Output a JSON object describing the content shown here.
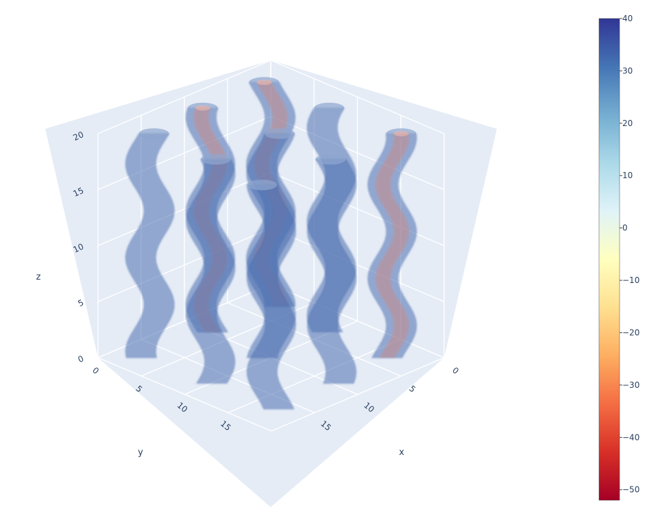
{
  "chart_data": {
    "type": "isosurface-3d",
    "title": "",
    "axes": {
      "x": {
        "title": "x",
        "range": [
          0,
          20
        ],
        "ticks": [
          "0",
          "5",
          "10",
          "15"
        ]
      },
      "y": {
        "title": "y",
        "range": [
          0,
          20
        ],
        "ticks": [
          "0",
          "5",
          "10",
          "15"
        ]
      },
      "z": {
        "title": "z",
        "range": [
          0,
          20
        ],
        "ticks": [
          "0",
          "5",
          "10",
          "15",
          "20"
        ]
      }
    },
    "colorbar": {
      "range": [
        -52,
        40
      ],
      "ticks": [
        "40",
        "30",
        "20",
        "10",
        "0",
        "−10",
        "−20",
        "−30",
        "−40",
        "−50"
      ],
      "tick_values": [
        40,
        30,
        20,
        10,
        0,
        -10,
        -20,
        -30,
        -40,
        -50
      ],
      "colorscale": "RdYlBu",
      "stops": [
        "#a50026",
        "#d73027",
        "#f46d43",
        "#fdae61",
        "#fee090",
        "#ffffbf",
        "#e0f3f8",
        "#abd9e9",
        "#74add1",
        "#4575b4",
        "#313695"
      ]
    },
    "grid": true,
    "scene_background": "#e5ecf6",
    "tubes": [
      {
        "x": 3,
        "y": 3,
        "z": [
          0,
          20
        ],
        "type": "outer",
        "color": "#4a6fb0"
      },
      {
        "x": 3,
        "y": 3,
        "z": [
          0,
          20
        ],
        "type": "inner",
        "color": "#c98a8a"
      },
      {
        "x": 10,
        "y": 3,
        "z": [
          0,
          20
        ],
        "type": "outer",
        "color": "#4a6fb0"
      },
      {
        "x": 17,
        "y": 3,
        "z": [
          0,
          20
        ],
        "type": "outer",
        "color": "#4a6fb0"
      },
      {
        "x": 17,
        "y": 3,
        "z": [
          0,
          20
        ],
        "type": "inner",
        "color": "#c98a8a"
      },
      {
        "x": 3,
        "y": 10,
        "z": [
          0,
          20
        ],
        "type": "outer",
        "color": "#4a6fb0"
      },
      {
        "x": 3,
        "y": 10,
        "z": [
          0,
          20
        ],
        "type": "inner",
        "color": "#c98a8a"
      },
      {
        "x": 10,
        "y": 10,
        "z": [
          0,
          20
        ],
        "type": "outer",
        "color": "#4a6fb0"
      },
      {
        "x": 17,
        "y": 10,
        "z": [
          0,
          20
        ],
        "type": "outer",
        "color": "#4a6fb0"
      },
      {
        "x": 3,
        "y": 17,
        "z": [
          0,
          20
        ],
        "type": "outer",
        "color": "#4a6fb0"
      },
      {
        "x": 10,
        "y": 17,
        "z": [
          0,
          20
        ],
        "type": "outer",
        "color": "#4a6fb0"
      },
      {
        "x": 17,
        "y": 17,
        "z": [
          0,
          20
        ],
        "type": "outer",
        "color": "#4a6fb0"
      }
    ]
  }
}
